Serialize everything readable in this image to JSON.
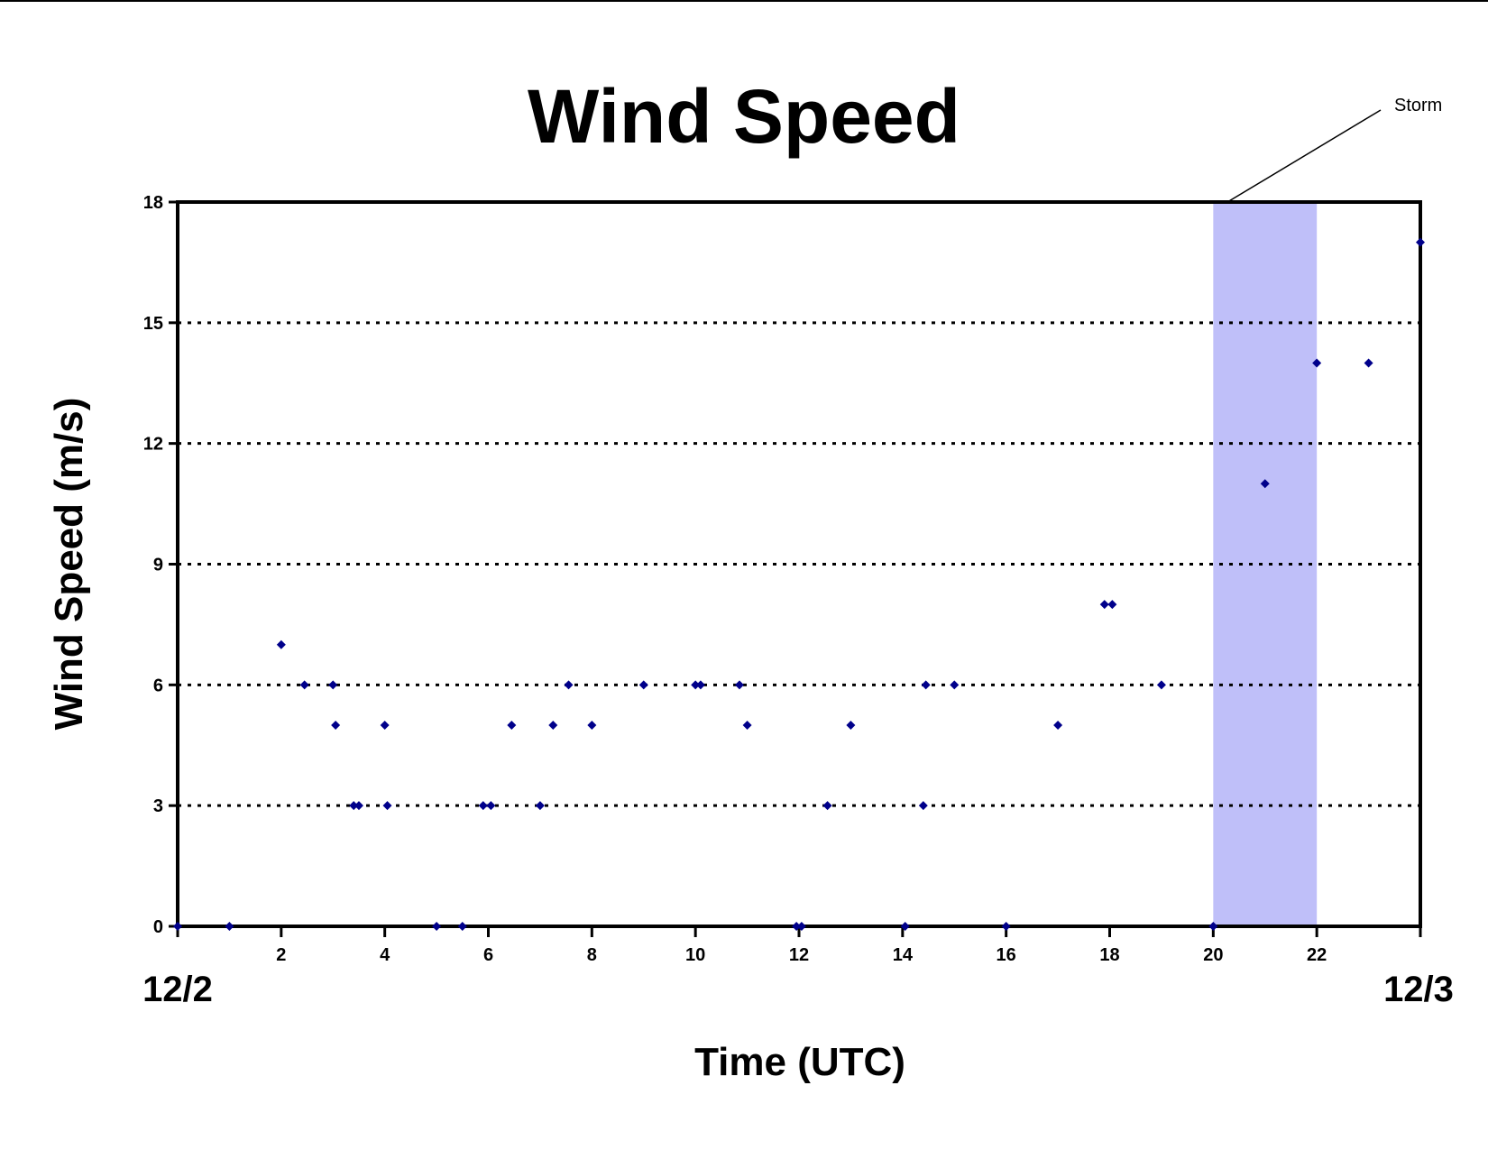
{
  "chart_data": {
    "type": "scatter",
    "title": "Wind Speed",
    "xlabel": "Time (UTC)",
    "ylabel": "Wind Speed (m/s)",
    "xlim": [
      0,
      24
    ],
    "ylim": [
      0,
      18
    ],
    "xticks": [
      2,
      4,
      6,
      8,
      10,
      12,
      14,
      16,
      18,
      20,
      22
    ],
    "yticks": [
      0,
      3,
      6,
      9,
      12,
      15,
      18
    ],
    "gridlines": [
      3,
      6,
      9,
      12,
      15
    ],
    "grid": "horizontal dotted",
    "start_label": "12/2",
    "end_label": "12/3",
    "marker_color": "#00008b",
    "highlight": {
      "label": "Storm",
      "x_start": 20,
      "x_end": 22,
      "color": "#bfbff9"
    },
    "series": [
      {
        "points": [
          [
            0,
            0
          ],
          [
            1,
            0
          ],
          [
            2,
            7
          ],
          [
            2.45,
            6
          ],
          [
            3,
            6
          ],
          [
            3.05,
            5
          ],
          [
            3.4,
            3
          ],
          [
            3.5,
            3
          ],
          [
            4,
            5
          ],
          [
            4.05,
            3
          ],
          [
            5,
            0
          ],
          [
            5.5,
            0
          ],
          [
            5.9,
            3
          ],
          [
            6.05,
            3
          ],
          [
            6.45,
            5
          ],
          [
            7,
            3
          ],
          [
            7.25,
            5
          ],
          [
            7.55,
            6
          ],
          [
            8,
            5
          ],
          [
            9,
            6
          ],
          [
            10,
            6
          ],
          [
            10.1,
            6
          ],
          [
            10.85,
            6
          ],
          [
            11,
            5
          ],
          [
            11.95,
            0
          ],
          [
            12.05,
            0
          ],
          [
            12.55,
            3
          ],
          [
            13,
            5
          ],
          [
            14.05,
            0
          ],
          [
            14.4,
            3
          ],
          [
            14.45,
            6
          ],
          [
            15,
            6
          ],
          [
            16,
            0
          ],
          [
            17,
            5
          ],
          [
            17.9,
            8
          ],
          [
            18.05,
            8
          ],
          [
            19,
            6
          ],
          [
            20,
            0
          ],
          [
            21,
            11
          ],
          [
            22,
            14
          ],
          [
            23,
            14
          ],
          [
            24,
            17
          ]
        ]
      }
    ]
  }
}
